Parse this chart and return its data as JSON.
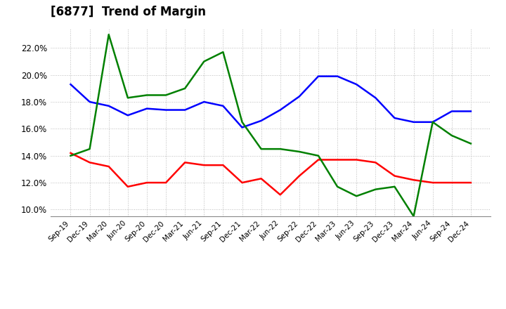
{
  "title": "[6877]  Trend of Margin",
  "x_labels": [
    "Sep-19",
    "Dec-19",
    "Mar-20",
    "Jun-20",
    "Sep-20",
    "Dec-20",
    "Mar-21",
    "Jun-21",
    "Sep-21",
    "Dec-21",
    "Mar-22",
    "Jun-22",
    "Sep-22",
    "Dec-22",
    "Mar-23",
    "Jun-23",
    "Sep-23",
    "Dec-23",
    "Mar-24",
    "Jun-24",
    "Sep-24",
    "Dec-24"
  ],
  "ordinary_income": [
    19.3,
    18.0,
    17.7,
    17.0,
    17.5,
    17.4,
    17.4,
    18.0,
    17.7,
    16.1,
    16.6,
    17.4,
    18.4,
    19.9,
    19.9,
    19.3,
    18.3,
    16.8,
    16.5,
    16.5,
    17.3,
    17.3
  ],
  "net_income": [
    14.2,
    13.5,
    13.2,
    11.7,
    12.0,
    12.0,
    13.5,
    13.3,
    13.3,
    12.0,
    12.3,
    11.1,
    12.5,
    13.7,
    13.7,
    13.7,
    13.5,
    12.5,
    12.2,
    12.0,
    12.0,
    12.0
  ],
  "operating_cashflow": [
    14.0,
    14.5,
    23.0,
    18.3,
    18.5,
    18.5,
    19.0,
    21.0,
    21.7,
    16.5,
    14.5,
    14.5,
    14.3,
    14.0,
    11.7,
    11.0,
    11.5,
    11.7,
    9.5,
    16.5,
    15.5,
    14.9
  ],
  "ordinary_income_color": "#0000FF",
  "net_income_color": "#FF0000",
  "operating_cashflow_color": "#008000",
  "background_color": "#FFFFFF",
  "grid_color": "#BBBBBB",
  "ylim": [
    9.5,
    23.5
  ],
  "yticks": [
    10.0,
    12.0,
    14.0,
    16.0,
    18.0,
    20.0,
    22.0
  ],
  "title_fontsize": 12
}
